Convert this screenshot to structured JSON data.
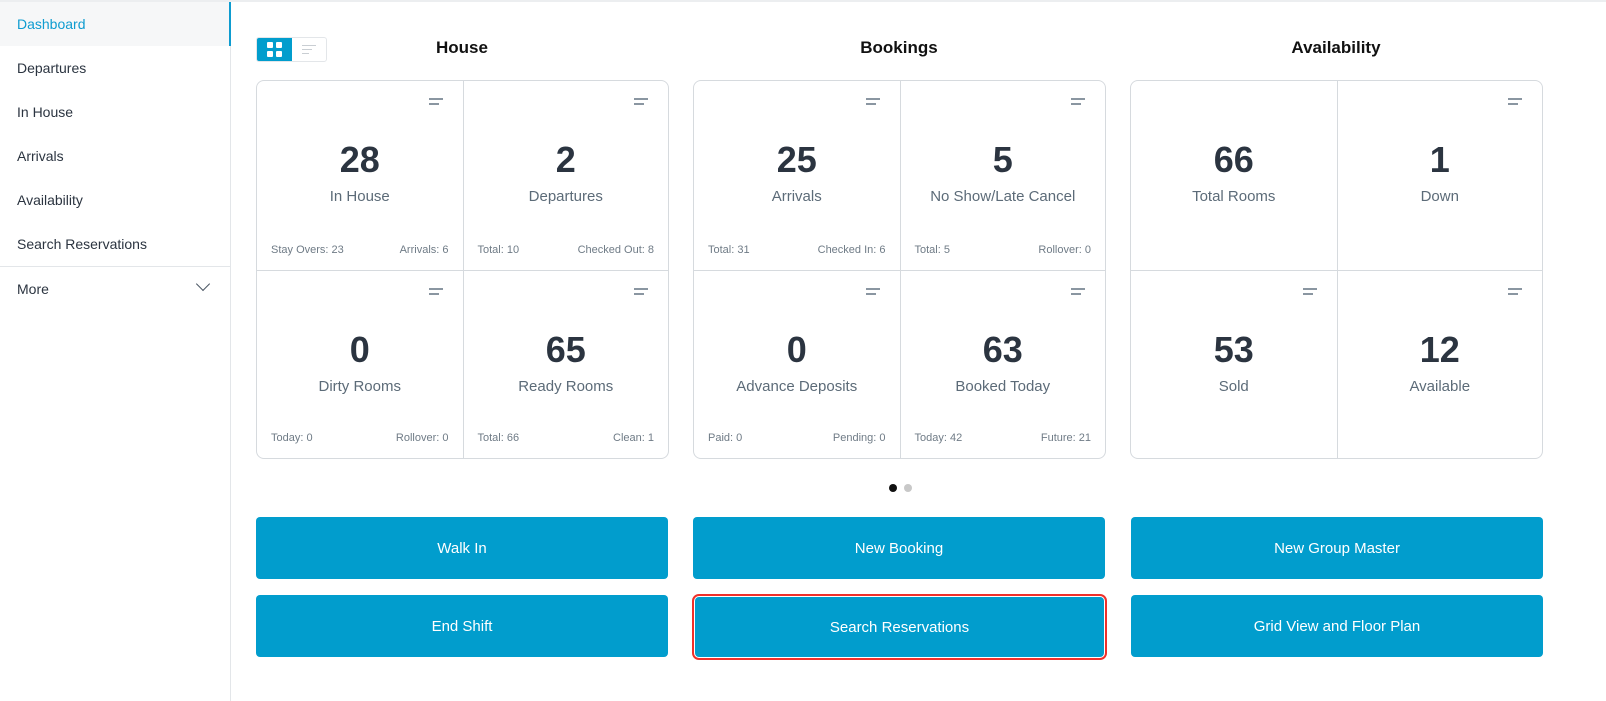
{
  "sidebar": {
    "items": [
      {
        "label": "Dashboard",
        "active": true
      },
      {
        "label": "Departures"
      },
      {
        "label": "In House"
      },
      {
        "label": "Arrivals"
      },
      {
        "label": "Availability"
      },
      {
        "label": "Search Reservations"
      }
    ],
    "more": "More"
  },
  "view_toggle": {
    "selected": "grid-icon",
    "options": [
      "grid-icon",
      "list-icon"
    ]
  },
  "columns": [
    {
      "title": "House",
      "tiles": [
        {
          "value": "28",
          "label": "In House",
          "left": "Stay Overs: 23",
          "right": "Arrivals: 6"
        },
        {
          "value": "2",
          "label": "Departures",
          "left": "Total: 10",
          "right": "Checked Out: 8"
        },
        {
          "value": "0",
          "label": "Dirty Rooms",
          "left": "Today: 0",
          "right": "Rollover: 0"
        },
        {
          "value": "65",
          "label": "Ready Rooms",
          "left": "Total: 66",
          "right": "Clean: 1"
        }
      ]
    },
    {
      "title": "Bookings",
      "tiles": [
        {
          "value": "25",
          "label": "Arrivals",
          "left": "Total: 31",
          "right": "Checked In: 6"
        },
        {
          "value": "5",
          "label": "No Show/Late Cancel",
          "left": "Total: 5",
          "right": "Rollover: 0"
        },
        {
          "value": "0",
          "label": "Advance Deposits",
          "left": "Paid: 0",
          "right": "Pending: 0"
        },
        {
          "value": "63",
          "label": "Booked Today",
          "left": "Today: 42",
          "right": "Future: 21"
        }
      ]
    },
    {
      "title": "Availability",
      "tiles": [
        {
          "value": "66",
          "label": "Total Rooms"
        },
        {
          "value": "1",
          "label": "Down"
        },
        {
          "value": "53",
          "label": "Sold"
        },
        {
          "value": "12",
          "label": "Available"
        }
      ]
    }
  ],
  "pager": {
    "current": 1,
    "total": 2
  },
  "buttons": [
    "Walk In",
    "New Booking",
    "New Group Master",
    "End Shift",
    "Search Reservations",
    "Grid View and Floor Plan"
  ],
  "colors": {
    "accent": "#019dcd",
    "highlight": "#f0302a"
  }
}
